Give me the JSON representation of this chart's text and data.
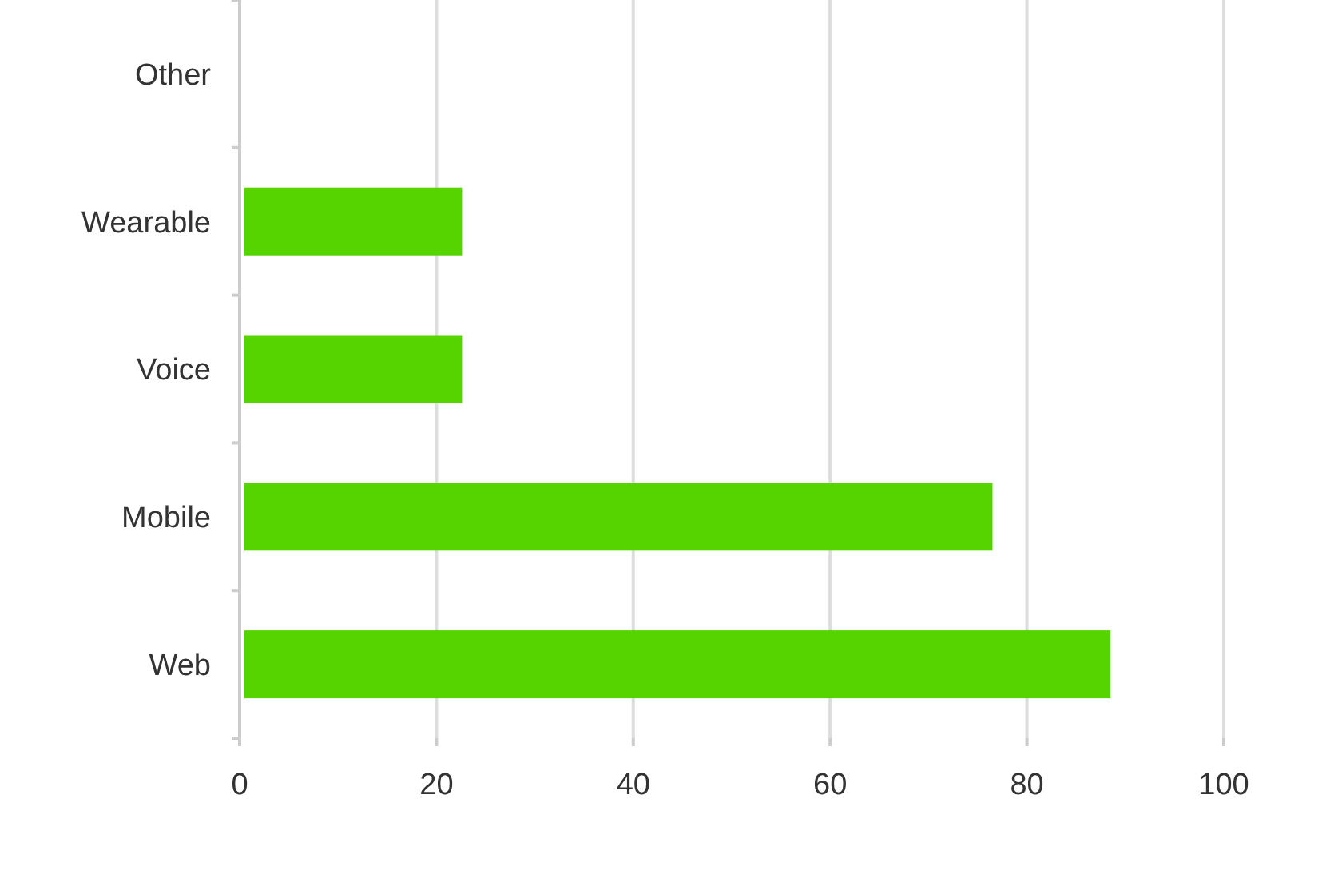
{
  "chart_data": {
    "type": "bar",
    "orientation": "horizontal",
    "categories": [
      "Other",
      "Wearable",
      "Voice",
      "Mobile",
      "Web"
    ],
    "values": [
      0,
      22.6,
      22.6,
      76.5,
      88.5
    ],
    "color": "#55d400",
    "xlim": [
      0,
      100
    ],
    "xticks": [
      0,
      20,
      40,
      60,
      80,
      100
    ],
    "grid": "x"
  }
}
